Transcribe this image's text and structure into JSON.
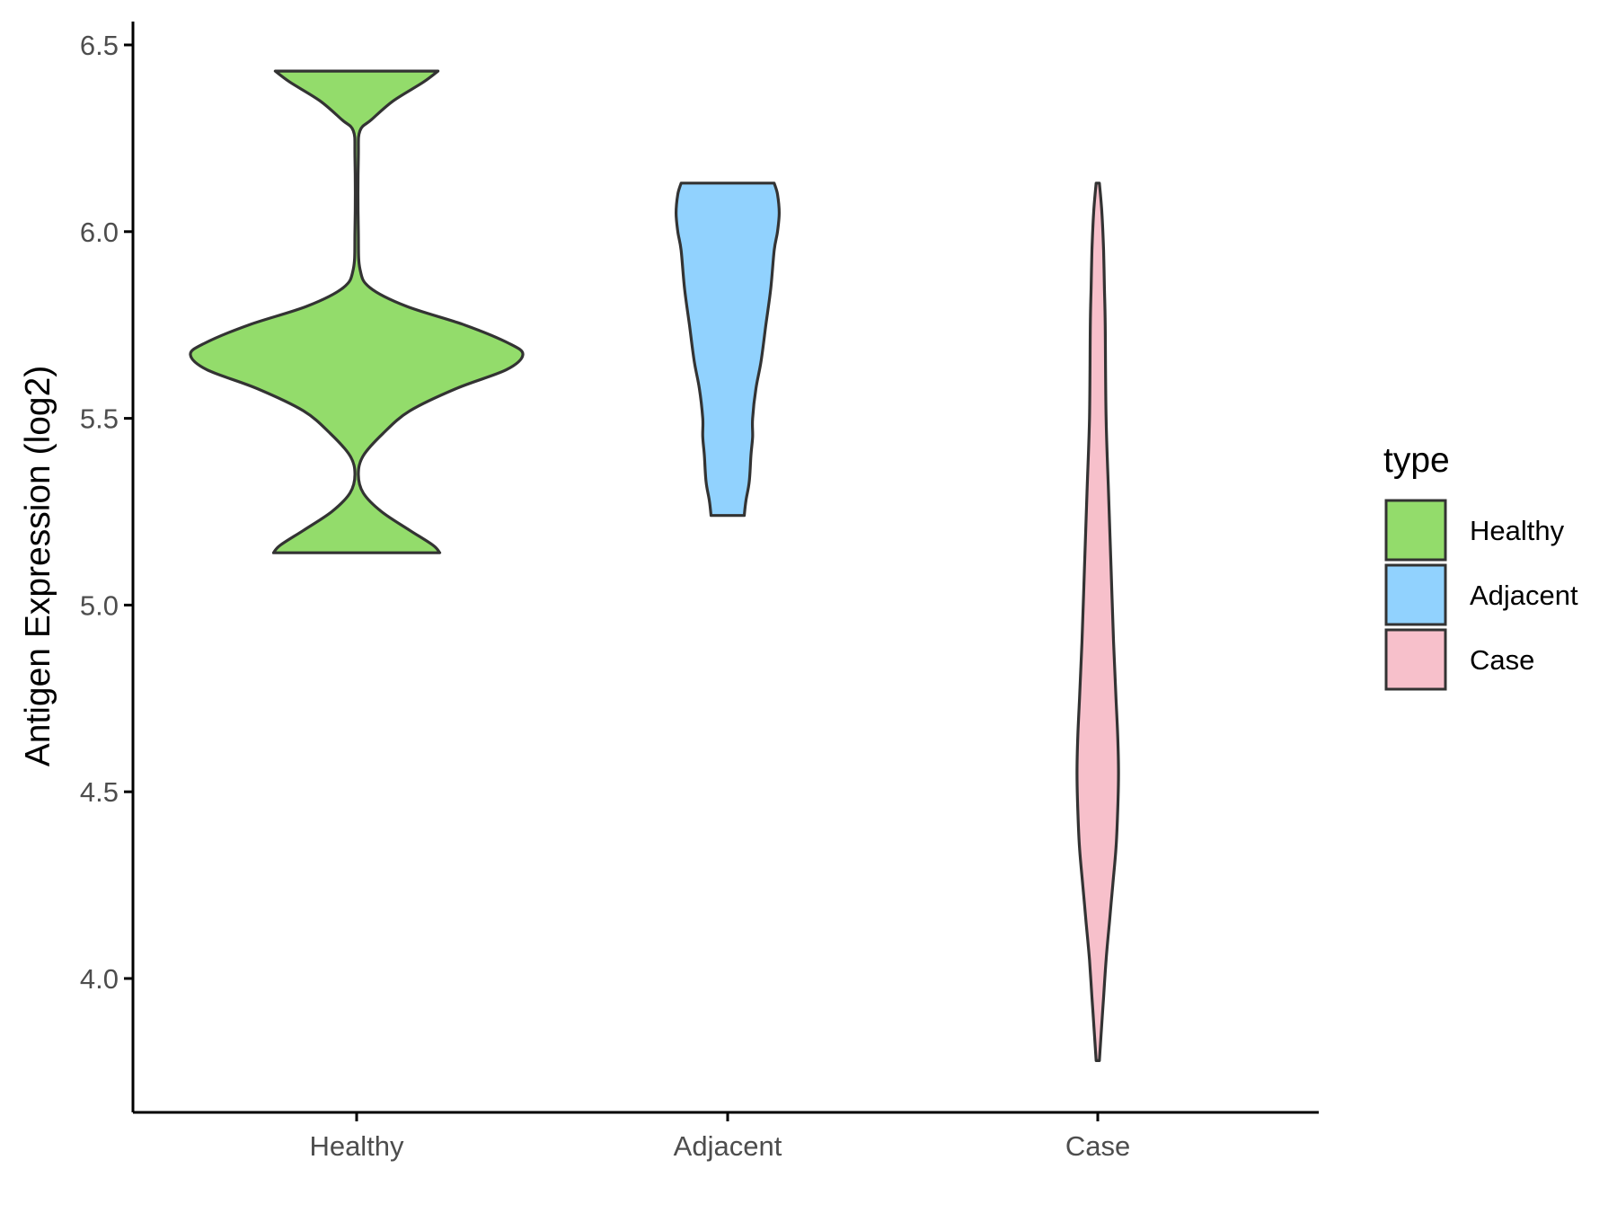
{
  "chart_data": {
    "type": "violin",
    "ylabel": "Antigen Expression (log2)",
    "xlabel": "",
    "categories": [
      "Healthy",
      "Adjacent",
      "Case"
    ],
    "ylim": [
      3.77,
      6.56
    ],
    "yticks": [
      "4.0",
      "4.5",
      "5.0",
      "5.5",
      "6.0",
      "6.5"
    ],
    "grid": false,
    "legend": {
      "title": "type",
      "placement": "right",
      "entries": [
        "Healthy",
        "Adjacent",
        "Case"
      ]
    },
    "colors": {
      "Healthy": "#93dc6b",
      "Adjacent": "#91d2fe",
      "Case": "#f7c0cb",
      "outline": "#333333",
      "axis": "#000000"
    },
    "series": [
      {
        "category": "Healthy",
        "min": 5.14,
        "max": 6.43,
        "density": [
          [
            6.43,
            0.49
          ],
          [
            6.4,
            0.4
          ],
          [
            6.35,
            0.22
          ],
          [
            6.3,
            0.09
          ],
          [
            6.27,
            0.02
          ],
          [
            6.2,
            0.01
          ],
          [
            6.0,
            0.01
          ],
          [
            5.9,
            0.02
          ],
          [
            5.85,
            0.08
          ],
          [
            5.8,
            0.3
          ],
          [
            5.75,
            0.65
          ],
          [
            5.7,
            0.92
          ],
          [
            5.67,
            1.0
          ],
          [
            5.63,
            0.9
          ],
          [
            5.58,
            0.6
          ],
          [
            5.52,
            0.32
          ],
          [
            5.46,
            0.16
          ],
          [
            5.4,
            0.04
          ],
          [
            5.35,
            0.01
          ],
          [
            5.3,
            0.04
          ],
          [
            5.25,
            0.15
          ],
          [
            5.2,
            0.32
          ],
          [
            5.16,
            0.46
          ],
          [
            5.14,
            0.5
          ]
        ]
      },
      {
        "category": "Adjacent",
        "min": 5.24,
        "max": 6.13,
        "density": [
          [
            6.13,
            0.28
          ],
          [
            6.1,
            0.3
          ],
          [
            6.05,
            0.31
          ],
          [
            6.0,
            0.3
          ],
          [
            5.95,
            0.28
          ],
          [
            5.85,
            0.26
          ],
          [
            5.75,
            0.23
          ],
          [
            5.65,
            0.2
          ],
          [
            5.58,
            0.17
          ],
          [
            5.5,
            0.15
          ],
          [
            5.45,
            0.15
          ],
          [
            5.4,
            0.14
          ],
          [
            5.33,
            0.13
          ],
          [
            5.28,
            0.11
          ],
          [
            5.24,
            0.1
          ]
        ]
      },
      {
        "category": "Case",
        "min": 3.78,
        "max": 6.13,
        "density": [
          [
            6.13,
            0.01
          ],
          [
            6.05,
            0.025
          ],
          [
            5.95,
            0.035
          ],
          [
            5.85,
            0.04
          ],
          [
            5.75,
            0.045
          ],
          [
            5.5,
            0.05
          ],
          [
            5.3,
            0.065
          ],
          [
            5.1,
            0.08
          ],
          [
            4.9,
            0.095
          ],
          [
            4.75,
            0.11
          ],
          [
            4.65,
            0.12
          ],
          [
            4.55,
            0.125
          ],
          [
            4.45,
            0.12
          ],
          [
            4.35,
            0.11
          ],
          [
            4.25,
            0.09
          ],
          [
            4.15,
            0.07
          ],
          [
            4.05,
            0.05
          ],
          [
            3.95,
            0.035
          ],
          [
            3.85,
            0.02
          ],
          [
            3.78,
            0.01
          ]
        ]
      }
    ]
  }
}
